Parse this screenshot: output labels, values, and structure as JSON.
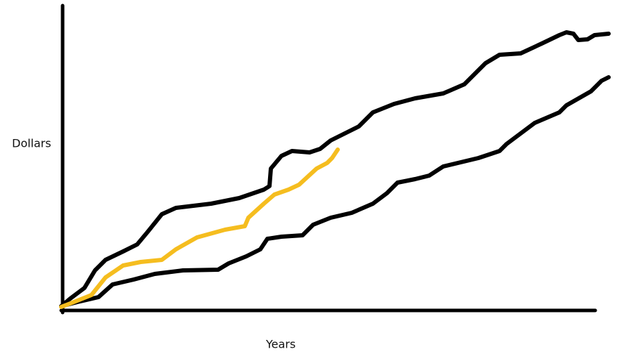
{
  "axes": {
    "y_label": "Dollars",
    "x_label": "Years"
  }
}
